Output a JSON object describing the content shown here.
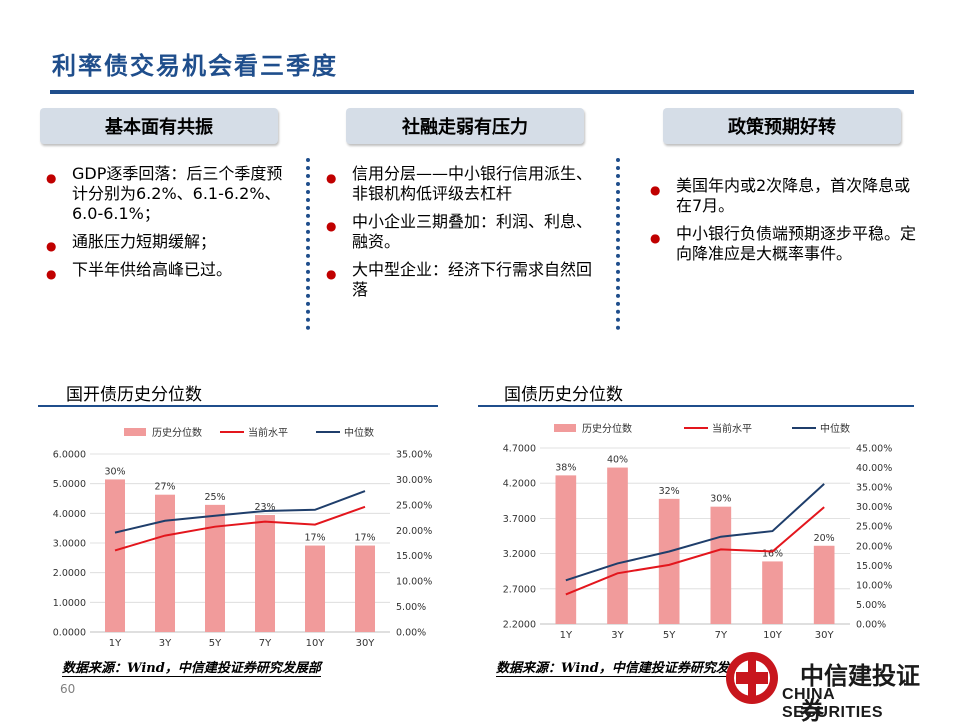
{
  "title": "利率债交易机会看三季度",
  "pills": [
    "基本面有共振",
    "社融走弱有压力",
    "政策预期好转"
  ],
  "col1": [
    "GDP逐季回落：后三个季度预计分别为6.2%、6.1-6.2%、6.0-6.1%；",
    "通胀压力短期缓解；",
    "下半年供给高峰已过。"
  ],
  "col2": [
    "信用分层——中小银行信用派生、非银机构低评级去杠杆",
    "中小企业三期叠加：利润、利息、融资。",
    "大中型企业：经济下行需求自然回落"
  ],
  "col3": [
    "美国年内或2次降息，首次降息或在7月。",
    "中小银行负债端预期逐步平稳。定向降准应是大概率事件。"
  ],
  "chart_labels": [
    "国开债历史分位数",
    "国债历史分位数"
  ],
  "legend": [
    "历史分位数",
    "当前水平",
    "中位数"
  ],
  "colors": {
    "bar": "#f19b9b",
    "current": "#e3161d",
    "median": "#1f3e6b",
    "accent": "#1f4e8c"
  },
  "source": "数据来源：Wind，中信建投证券研究发展部",
  "page_number": "60",
  "logo": {
    "cn": "中信建投证券",
    "en": "CHINA SECURITIES"
  },
  "chart_data": [
    {
      "type": "bar",
      "categories": [
        "1Y",
        "3Y",
        "5Y",
        "7Y",
        "10Y",
        "30Y"
      ],
      "series": [
        {
          "name": "历史分位数",
          "axis": "right",
          "values": [
            30,
            27,
            25,
            23,
            17,
            17
          ],
          "labels": [
            "30%",
            "27%",
            "25%",
            "23%",
            "17%",
            "17%"
          ]
        },
        {
          "name": "当前水平",
          "axis": "left",
          "type": "line",
          "values": [
            2.75,
            3.25,
            3.55,
            3.72,
            3.62,
            4.22
          ]
        },
        {
          "name": "中位数",
          "axis": "left",
          "type": "line",
          "values": [
            3.35,
            3.75,
            3.92,
            4.08,
            4.12,
            4.75
          ]
        }
      ],
      "ylim_left": [
        0,
        6
      ],
      "yticks_left": [
        "0.0000",
        "1.0000",
        "2.0000",
        "3.0000",
        "4.0000",
        "5.0000",
        "6.0000"
      ],
      "ylim_right": [
        0,
        35
      ],
      "yticks_right": [
        "0.00%",
        "5.00%",
        "10.00%",
        "15.00%",
        "20.00%",
        "25.00%",
        "30.00%",
        "35.00%"
      ],
      "grid": true,
      "legend_position": "top"
    },
    {
      "type": "bar",
      "categories": [
        "1Y",
        "3Y",
        "5Y",
        "7Y",
        "10Y",
        "30Y"
      ],
      "series": [
        {
          "name": "历史分位数",
          "axis": "right",
          "values": [
            38,
            40,
            32,
            30,
            16,
            20
          ],
          "labels": [
            "38%",
            "40%",
            "32%",
            "30%",
            "16%",
            "20%"
          ]
        },
        {
          "name": "当前水平",
          "axis": "left",
          "type": "line",
          "values": [
            2.62,
            2.92,
            3.04,
            3.26,
            3.23,
            3.86
          ]
        },
        {
          "name": "中位数",
          "axis": "left",
          "type": "line",
          "values": [
            2.82,
            3.06,
            3.23,
            3.44,
            3.52,
            4.19
          ]
        }
      ],
      "ylim_left": [
        2.2,
        4.7
      ],
      "yticks_left": [
        "2.2000",
        "2.7000",
        "3.2000",
        "3.7000",
        "4.2000",
        "4.7000"
      ],
      "ylim_right": [
        0,
        45
      ],
      "yticks_right": [
        "0.00%",
        "5.00%",
        "10.00%",
        "15.00%",
        "20.00%",
        "25.00%",
        "30.00%",
        "35.00%",
        "40.00%",
        "45.00%"
      ],
      "grid": true,
      "legend_position": "top"
    }
  ]
}
